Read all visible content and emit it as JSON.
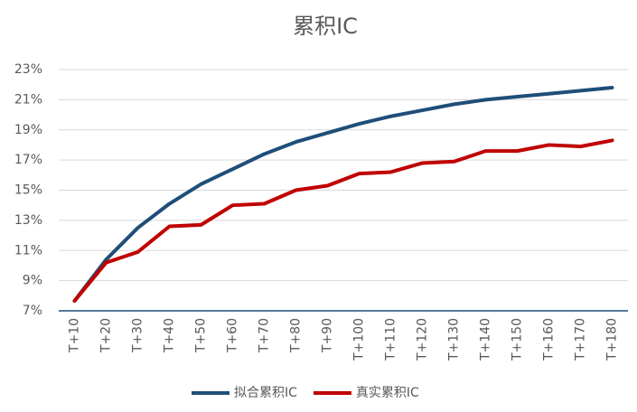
{
  "chart_data": {
    "type": "line",
    "title": "累积IC",
    "categories": [
      "T+10",
      "T+20",
      "T+30",
      "T+40",
      "T+50",
      "T+60",
      "T+70",
      "T+80",
      "T+90",
      "T+100",
      "T+110",
      "T+120",
      "T+130",
      "T+140",
      "T+150",
      "T+160",
      "T+170",
      "T+180"
    ],
    "series": [
      {
        "name": "拟合累积IC",
        "color": "#1f4e79",
        "values": [
          7.66,
          10.4,
          12.5,
          14.1,
          15.4,
          16.4,
          17.4,
          18.2,
          18.8,
          19.4,
          19.9,
          20.3,
          20.7,
          21.0,
          21.2,
          21.4,
          21.6,
          21.8
        ]
      },
      {
        "name": "真实累积IC",
        "color": "#c00000",
        "values": [
          7.66,
          10.2,
          10.9,
          12.6,
          12.7,
          14.0,
          14.1,
          15.0,
          15.3,
          16.1,
          16.2,
          16.8,
          16.9,
          17.6,
          17.6,
          18.0,
          17.9,
          18.3
        ]
      }
    ],
    "ylim": [
      7,
      23
    ],
    "yticks": [
      {
        "value": 7,
        "label": "7%"
      },
      {
        "value": 9,
        "label": "9%"
      },
      {
        "value": 11,
        "label": "11%"
      },
      {
        "value": 13,
        "label": "13%"
      },
      {
        "value": 15,
        "label": "15%"
      },
      {
        "value": 17,
        "label": "17%"
      },
      {
        "value": 19,
        "label": "19%"
      },
      {
        "value": 21,
        "label": "21%"
      },
      {
        "value": 23,
        "label": "23%"
      }
    ],
    "grid": true,
    "legend": "bottom"
  }
}
